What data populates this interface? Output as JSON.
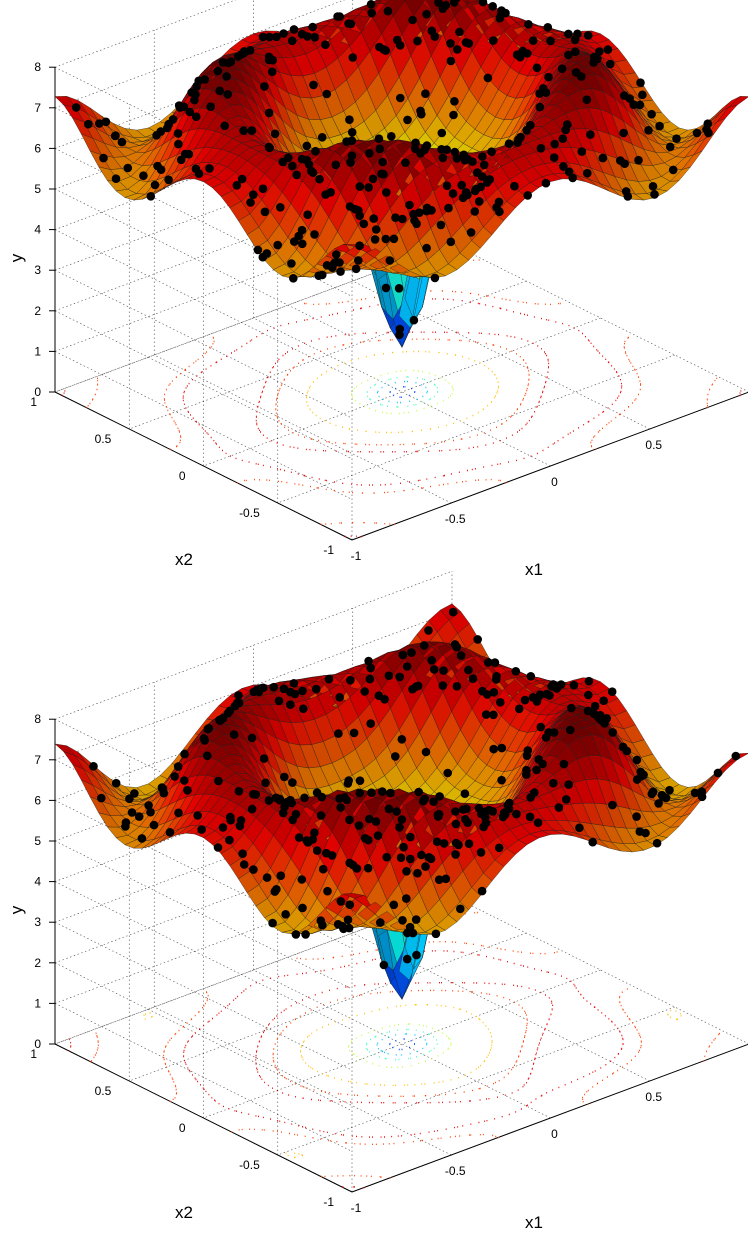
{
  "chart_data": [
    {
      "type": "surface",
      "title": "",
      "xlabel": "x1",
      "ylabel": "x2",
      "zlabel": "y",
      "xlim": [
        -1,
        1
      ],
      "ylim": [
        -1,
        1
      ],
      "zlim": [
        0,
        8
      ],
      "x_ticks": [
        "-1",
        "-0.5",
        "0",
        "0.5"
      ],
      "y_ticks": [
        "-1",
        "-0.5",
        "0",
        "0.5",
        "1"
      ],
      "z_ticks": [
        "0",
        "1",
        "2",
        "3",
        "4",
        "5",
        "6",
        "7",
        "8"
      ],
      "grid": true,
      "colormap": "jet",
      "contour_projection": true,
      "sample_points": "black markers",
      "surface_peak": 8.0,
      "surface_min": 0.3
    },
    {
      "type": "surface",
      "title": "",
      "xlabel": "x1",
      "ylabel": "x2",
      "zlabel": "y",
      "xlim": [
        -1,
        1
      ],
      "ylim": [
        -1,
        1
      ],
      "zlim": [
        0,
        8
      ],
      "x_ticks": [
        "-1",
        "-0.5",
        "0",
        "0.5"
      ],
      "y_ticks": [
        "-1",
        "-0.5",
        "0",
        "0.5",
        "1"
      ],
      "z_ticks": [
        "0",
        "1",
        "2",
        "3",
        "4",
        "5",
        "6",
        "7",
        "8"
      ],
      "grid": true,
      "colormap": "jet",
      "contour_projection": true,
      "sample_points": "black markers",
      "surface_peak": 8.0,
      "surface_min": 0.2
    }
  ]
}
